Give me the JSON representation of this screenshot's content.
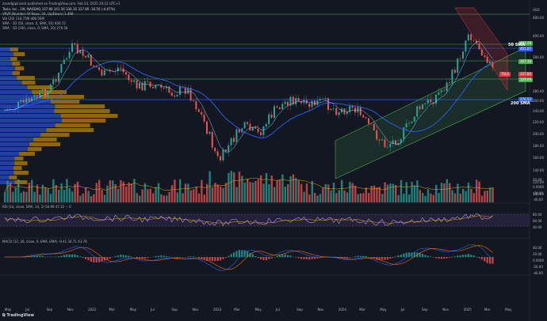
{
  "header": {
    "published": "zavedgipinvest published on TradingView.com, Feb 23, 2025 20:22 UTC+1",
    "symbol_line": "Tesla, Inc., 1W, NASDAQ 337.80 341.56 336.16 337.80 -16.56 (-4.67%)",
    "lines": [
      "VRVP (Number Of Rows, 24, Up/Down) 1.498",
      "Vol (20) 118.75M 406.56M",
      "SMA - 1D (50, close, 0, SMA, 50) 400.72",
      "SMA - 1D (200, close, 0, SMA, 20) 276.56"
    ],
    "currency": "USD"
  },
  "price_axis": {
    "labels": [
      "480.00",
      "440.00",
      "400.00",
      "380.00",
      "340.00",
      "300.00",
      "280.00",
      "260.00",
      "240.00",
      "220.00",
      "200.00",
      "180.00",
      "160.00",
      "140.00",
      "120.00",
      "100.00"
    ],
    "tags": [
      {
        "text": "491.29",
        "color": "#4caf50"
      },
      {
        "text": "401.07",
        "color": "#2962ff"
      },
      {
        "text": "367.36",
        "color": "#4caf50"
      },
      {
        "text": "337.80",
        "color": "#f23645"
      },
      {
        "text": "329.09",
        "color": "#4caf50"
      },
      {
        "text": "276.52",
        "color": "#2962ff"
      }
    ],
    "tsla_tag": "TSLA"
  },
  "volume_axis": {
    "labels": [
      "20.00",
      "0.0000",
      "-20.00",
      "-40.00"
    ]
  },
  "rsi": {
    "header": "RSI (14, close, SMA, 14, 2) 50.99 47.32 − 0",
    "labels": [
      "80.00",
      "60.00",
      "40.00"
    ]
  },
  "macd": {
    "header": "MACD (12, 26, close, 9, EMA, EMA) -9.41 34.71 43.78",
    "labels": [
      "40.00",
      "20.00",
      "0.0000",
      "-20.00",
      "-40.00"
    ]
  },
  "time_axis": [
    "May",
    "Jul",
    "Sep",
    "Nov",
    "2022",
    "Mar",
    "May",
    "Jul",
    "Sep",
    "Nov",
    "2023",
    "Mar",
    "May",
    "Jul",
    "Sep",
    "Nov",
    "2024",
    "Mar",
    "May",
    "Jul",
    "Sep",
    "Nov",
    "2025",
    "Mar",
    "May"
  ],
  "annotations": {
    "sma50": "50 SMA",
    "sma200": "200 SMA"
  },
  "brand": "TradingView",
  "colors": {
    "bg": "#131722",
    "up": "#26a69a",
    "down": "#ef5350",
    "sma50": "#2962ff",
    "sma200": "#90caf9",
    "channel": "#4caf50",
    "wedge": "#f23645"
  }
}
